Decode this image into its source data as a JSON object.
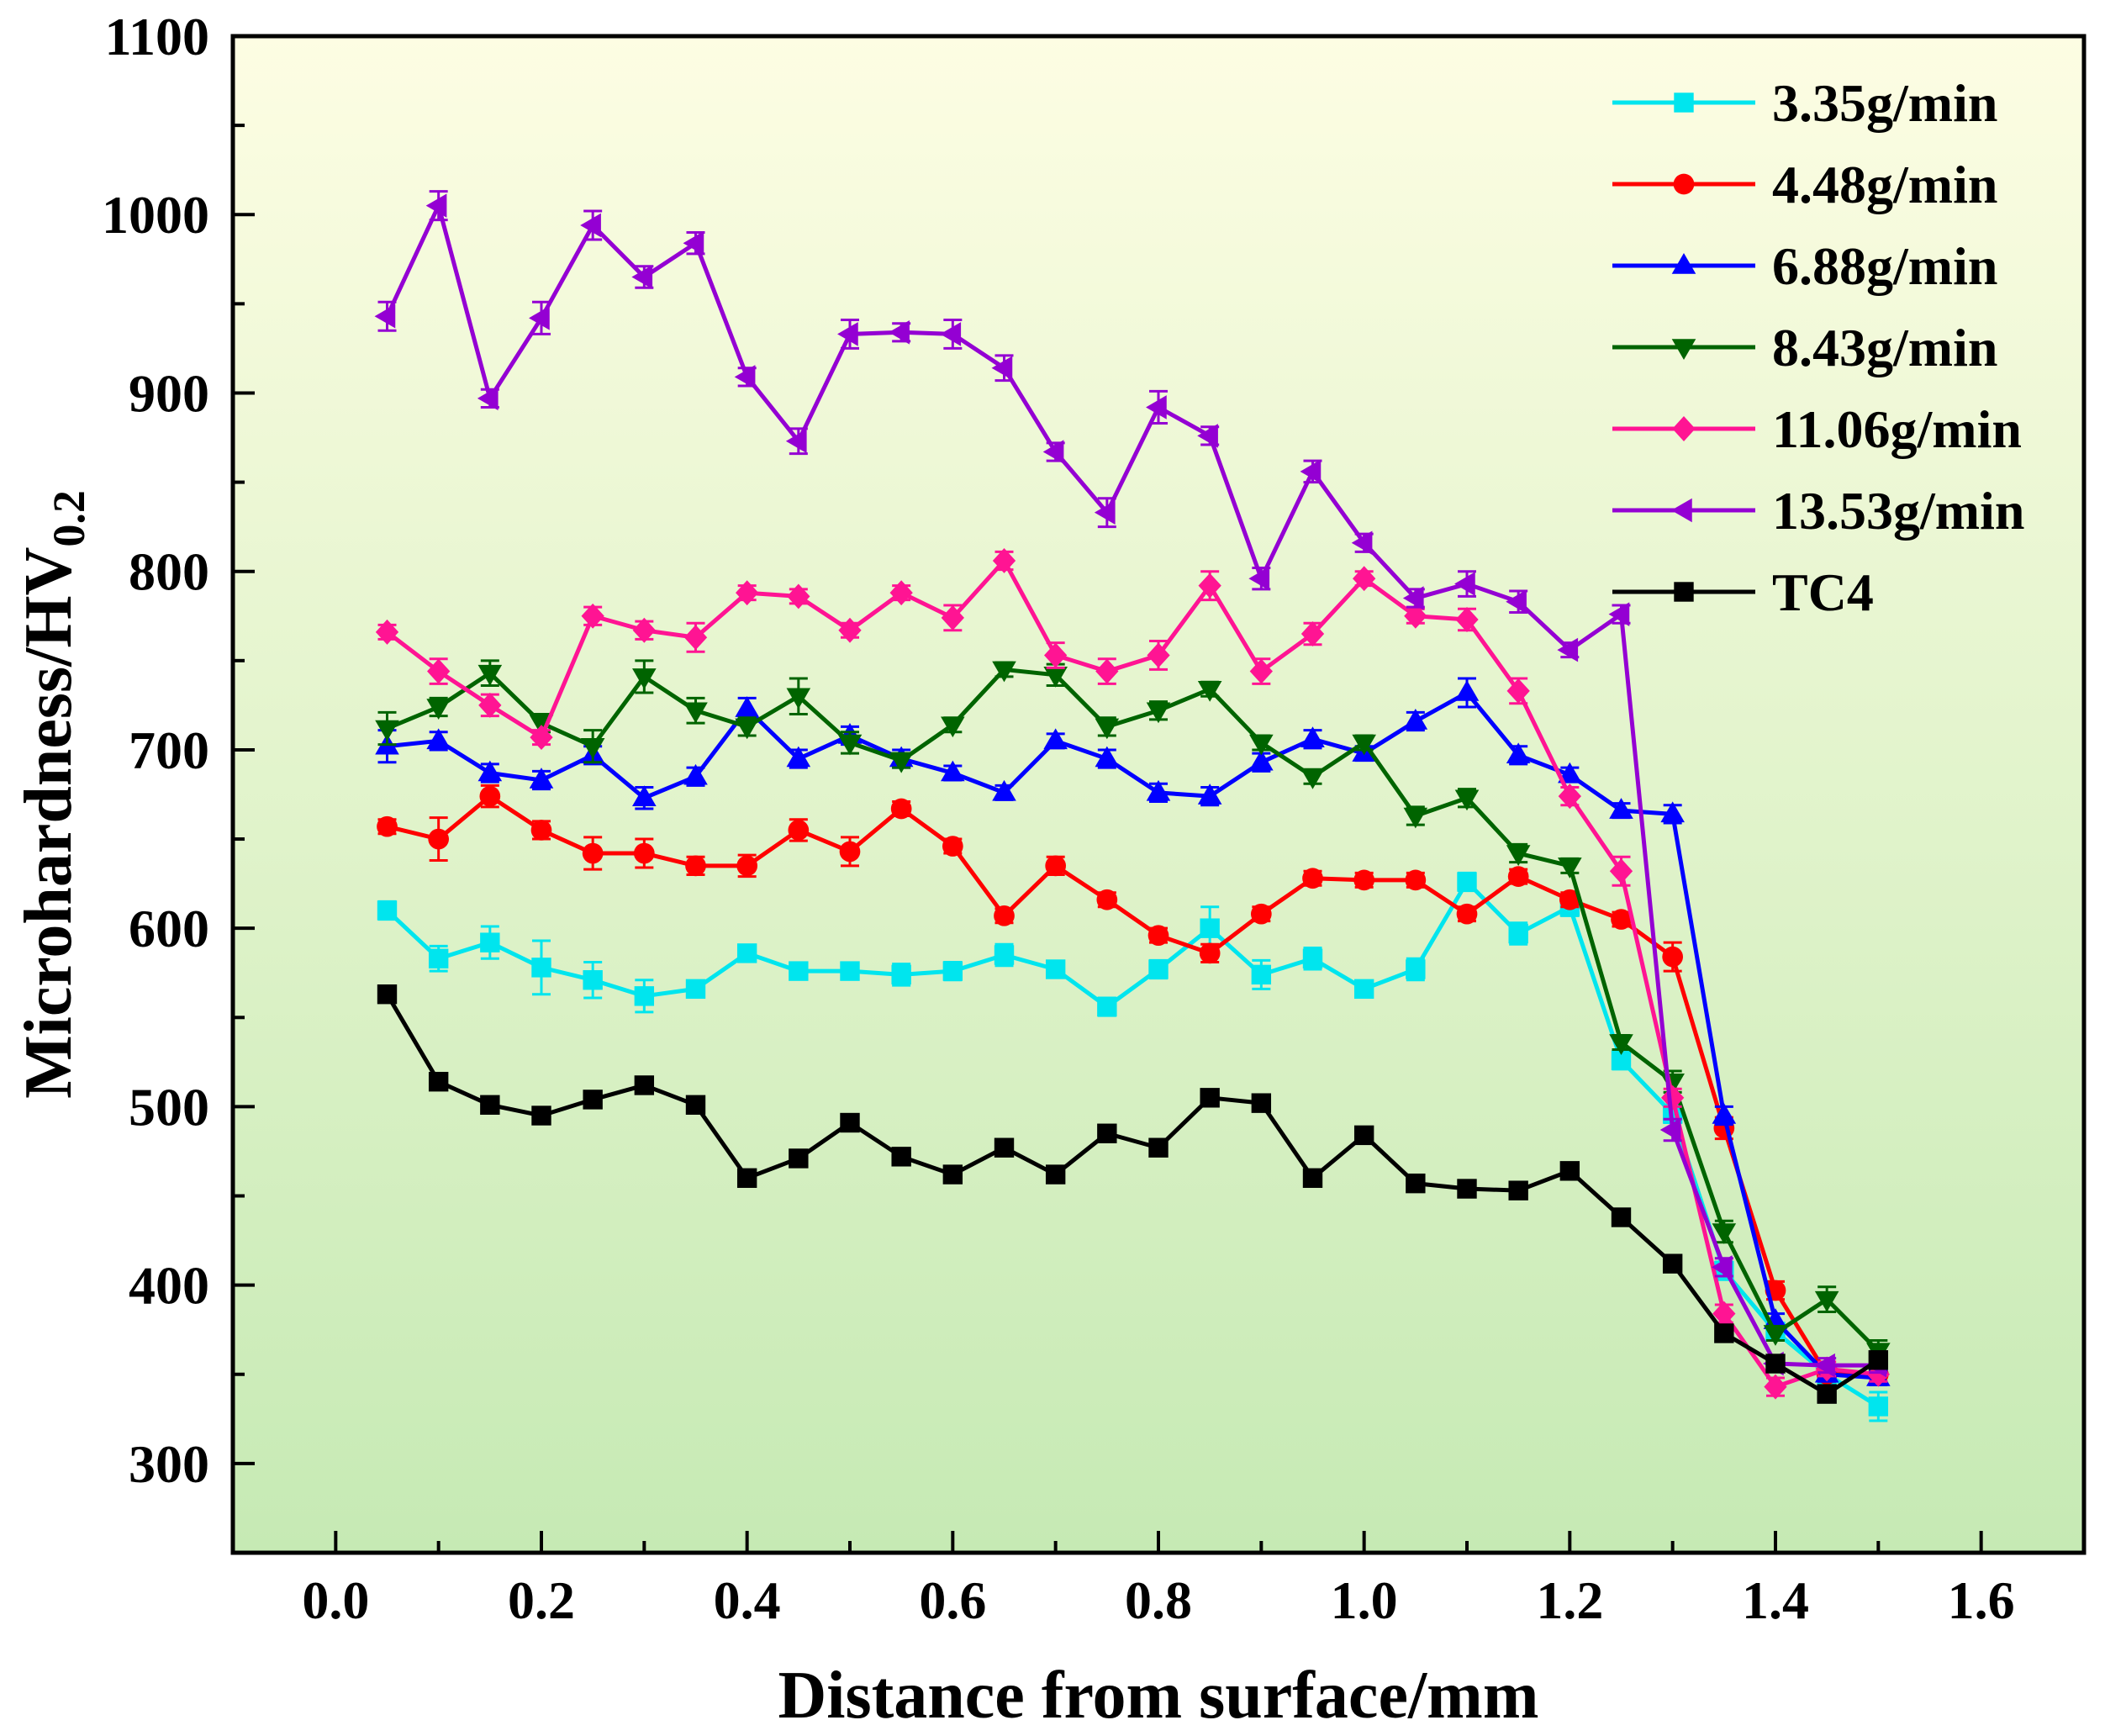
{
  "chart_data": {
    "type": "line",
    "title": "",
    "xlabel": "Distance from surface/mm",
    "ylabel_main": "Microhardness/HV",
    "ylabel_sub": "0.2",
    "xlim": [
      -0.1,
      1.7
    ],
    "ylim": [
      250,
      1100
    ],
    "x_ticks": [
      "0.0",
      "0.2",
      "0.4",
      "0.6",
      "0.8",
      "1.0",
      "1.2",
      "1.4",
      "1.6"
    ],
    "y_ticks": [
      "300",
      "400",
      "500",
      "600",
      "700",
      "800",
      "900",
      "1000",
      "1100"
    ],
    "legend_position": "top-right",
    "grid": false,
    "x": [
      0.05,
      0.1,
      0.15,
      0.2,
      0.25,
      0.3,
      0.35,
      0.4,
      0.45,
      0.5,
      0.55,
      0.6,
      0.65,
      0.7,
      0.75,
      0.8,
      0.85,
      0.9,
      0.95,
      1.0,
      1.05,
      1.1,
      1.15,
      1.2,
      1.25,
      1.3,
      1.35,
      1.4,
      1.45,
      1.5
    ],
    "series": [
      {
        "name": "3.35g/min",
        "color": "#00e5ee",
        "marker": "square",
        "values": [
          610,
          583,
          592,
          578,
          571,
          562,
          566,
          586,
          576,
          576,
          574,
          576,
          585,
          577,
          556,
          577,
          600,
          574,
          583,
          566,
          577,
          626,
          597,
          612,
          526,
          496,
          408,
          374,
          350,
          332
        ],
        "errors": [
          5,
          7,
          9,
          15,
          10,
          9,
          4,
          4,
          4,
          4,
          6,
          5,
          6,
          4,
          5,
          5,
          12,
          8,
          6,
          4,
          6,
          5,
          6,
          5,
          5,
          5,
          5,
          4,
          4,
          8
        ]
      },
      {
        "name": "4.48g/min",
        "color": "#ff0000",
        "marker": "circle",
        "values": [
          657,
          650,
          674,
          655,
          642,
          642,
          635,
          635,
          655,
          643,
          667,
          646,
          607,
          635,
          616,
          596,
          586,
          608,
          628,
          627,
          627,
          608,
          629,
          616,
          605,
          584,
          488,
          397,
          350,
          350
        ],
        "errors": [
          4,
          12,
          6,
          5,
          9,
          8,
          5,
          6,
          6,
          8,
          4,
          4,
          4,
          5,
          4,
          4,
          5,
          4,
          4,
          4,
          4,
          4,
          4,
          4,
          4,
          8,
          6,
          5,
          4,
          4
        ]
      },
      {
        "name": "6.88g/min",
        "color": "#0000ff",
        "marker": "triangle-up",
        "values": [
          702,
          705,
          687,
          683,
          697,
          673,
          685,
          723,
          695,
          708,
          695,
          687,
          676,
          705,
          695,
          676,
          674,
          693,
          706,
          698,
          716,
          732,
          697,
          686,
          666,
          664,
          495,
          380,
          350,
          348
        ],
        "errors": [
          9,
          5,
          5,
          5,
          5,
          6,
          5,
          6,
          5,
          5,
          5,
          4,
          4,
          4,
          5,
          5,
          5,
          5,
          5,
          4,
          5,
          8,
          5,
          4,
          4,
          5,
          5,
          4,
          4,
          4
        ]
      },
      {
        "name": "8.43g/min",
        "color": "#006400",
        "marker": "triangle-down",
        "values": [
          712,
          724,
          743,
          715,
          702,
          741,
          722,
          713,
          730,
          704,
          694,
          714,
          745,
          742,
          713,
          722,
          734,
          704,
          685,
          704,
          663,
          673,
          642,
          635,
          536,
          514,
          430,
          373,
          392,
          363
        ],
        "errors": [
          9,
          5,
          7,
          5,
          9,
          9,
          7,
          5,
          10,
          6,
          4,
          4,
          4,
          6,
          5,
          5,
          4,
          4,
          4,
          4,
          5,
          5,
          5,
          4,
          4,
          6,
          6,
          4,
          7,
          6
        ]
      },
      {
        "name": "11.06g/min",
        "color": "#ff1493",
        "marker": "diamond",
        "values": [
          766,
          744,
          725,
          707,
          775,
          767,
          763,
          788,
          786,
          767,
          788,
          774,
          806,
          753,
          744,
          753,
          792,
          744,
          765,
          796,
          775,
          773,
          733,
          674,
          632,
          505,
          384,
          343,
          353,
          350
        ],
        "errors": [
          4,
          7,
          6,
          4,
          5,
          5,
          8,
          4,
          4,
          4,
          4,
          7,
          5,
          7,
          7,
          8,
          8,
          7,
          6,
          4,
          4,
          6,
          7,
          5,
          8,
          5,
          5,
          5,
          4,
          4
        ]
      },
      {
        "name": "13.53g/min",
        "color": "#9400d3",
        "marker": "triangle-left",
        "values": [
          943,
          1005,
          897,
          942,
          994,
          965,
          984,
          909,
          873,
          933,
          934,
          933,
          914,
          867,
          833,
          892,
          876,
          796,
          856,
          816,
          785,
          793,
          783,
          756,
          776,
          487,
          410,
          356,
          355,
          355
        ],
        "errors": [
          8,
          8,
          5,
          9,
          8,
          6,
          6,
          5,
          7,
          8,
          5,
          8,
          7,
          5,
          8,
          9,
          5,
          6,
          6,
          5,
          5,
          7,
          6,
          4,
          5,
          6,
          5,
          4,
          4,
          4
        ]
      },
      {
        "name": "TC4",
        "color": "#000000",
        "marker": "square",
        "values": [
          563,
          514,
          501,
          495,
          504,
          512,
          501,
          460,
          471,
          491,
          472,
          462,
          477,
          462,
          485,
          477,
          505,
          502,
          460,
          484,
          457,
          454,
          453,
          464,
          438,
          412,
          373,
          356,
          339,
          358
        ],
        "errors": [
          0,
          0,
          0,
          0,
          0,
          0,
          0,
          0,
          0,
          0,
          0,
          0,
          0,
          0,
          0,
          0,
          0,
          0,
          0,
          0,
          0,
          0,
          0,
          0,
          0,
          0,
          0,
          0,
          0,
          0
        ]
      }
    ]
  }
}
